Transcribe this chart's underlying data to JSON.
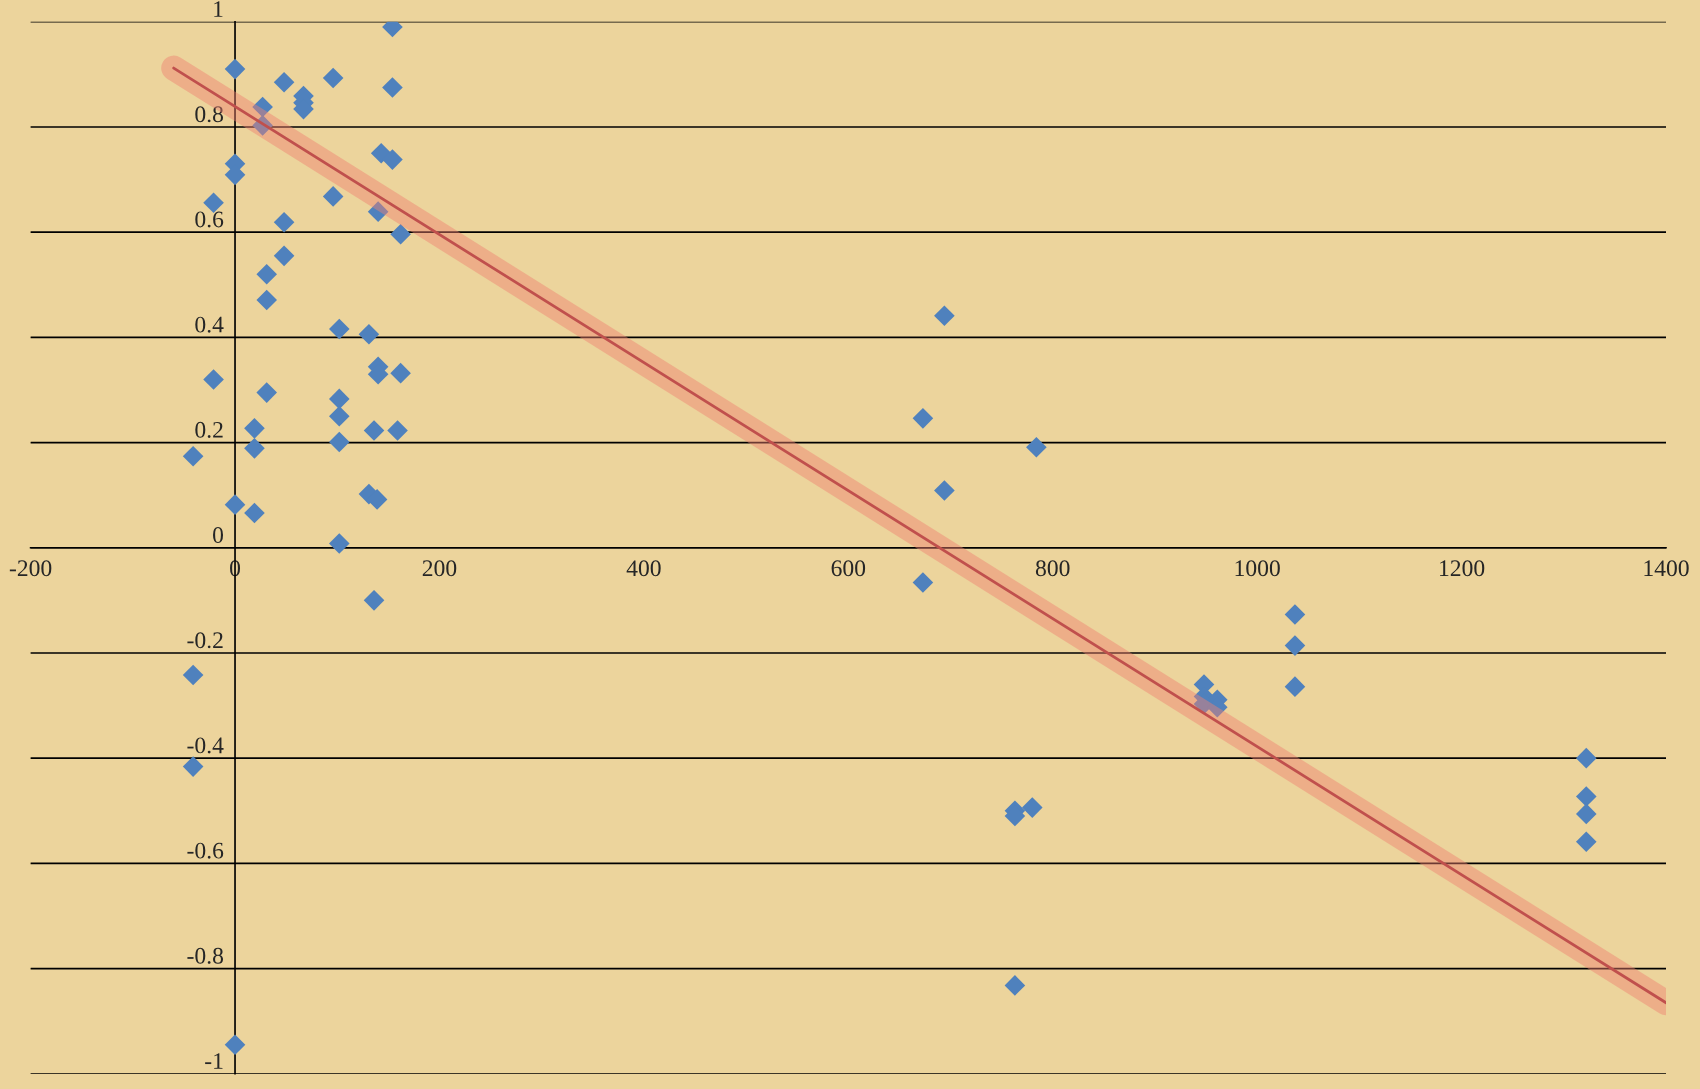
{
  "chart_data": {
    "type": "scatter",
    "xlim": [
      -200,
      1400
    ],
    "ylim": [
      -1,
      1
    ],
    "xticks": [
      -200,
      0,
      200,
      400,
      600,
      800,
      1000,
      1200,
      1400
    ],
    "yticks": [
      -1,
      -0.8,
      -0.6,
      -0.4,
      -0.2,
      0,
      0.2,
      0.4,
      0.6,
      0.8,
      1
    ],
    "grid": "y",
    "series": [
      {
        "color": "#4f81bd",
        "marker": "diamond",
        "x": [
          154,
          0,
          48,
          96,
          67,
          67,
          67,
          27,
          27,
          154,
          143,
          154,
          0,
          0,
          -21,
          96,
          140,
          48,
          162,
          48,
          31,
          31,
          694,
          102,
          131,
          140,
          140,
          162,
          -21,
          31,
          102,
          102,
          673,
          19,
          136,
          159,
          784,
          19,
          102,
          -41,
          694,
          131,
          139,
          0,
          19,
          102,
          673,
          136,
          1037,
          1037,
          -41,
          948,
          1037,
          948,
          961,
          948,
          961,
          1322,
          -41,
          1322,
          763,
          780,
          763,
          1322,
          1322,
          763,
          0
        ],
        "values": [
          0.99,
          0.91,
          0.885,
          0.893,
          0.859,
          0.846,
          0.834,
          0.838,
          0.803,
          0.875,
          0.75,
          0.738,
          0.73,
          0.709,
          0.656,
          0.668,
          0.639,
          0.619,
          0.596,
          0.555,
          0.52,
          0.471,
          0.441,
          0.416,
          0.406,
          0.344,
          0.33,
          0.332,
          0.32,
          0.295,
          0.283,
          0.25,
          0.246,
          0.227,
          0.223,
          0.223,
          0.191,
          0.189,
          0.201,
          0.174,
          0.109,
          0.102,
          0.092,
          0.082,
          0.066,
          0.008,
          -0.066,
          -0.1,
          -0.127,
          -0.186,
          -0.242,
          -0.26,
          -0.264,
          -0.283,
          -0.289,
          -0.297,
          -0.303,
          -0.4,
          -0.416,
          -0.473,
          -0.5,
          -0.494,
          -0.51,
          -0.506,
          -0.559,
          -0.832,
          -0.945
        ]
      },
      {
        "type": "line",
        "color": "#c0504d",
        "marker": "none",
        "x": [
          -60,
          1400
        ],
        "values": [
          0.912,
          -0.865
        ]
      }
    ]
  }
}
